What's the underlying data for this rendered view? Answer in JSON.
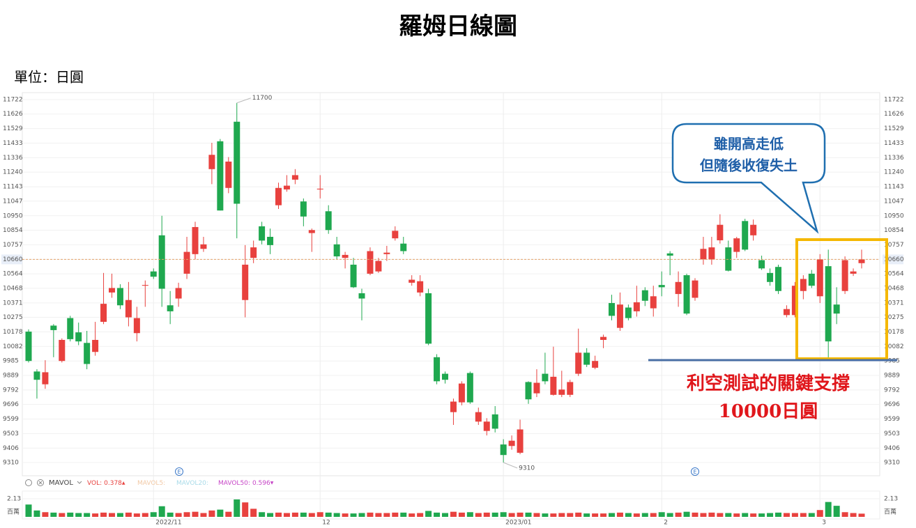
{
  "title": "羅姆日線圖",
  "unit": "單位：日圓",
  "chart_data": {
    "type": "candlestick",
    "categories": [
      null,
      null,
      null,
      null,
      null,
      null,
      null,
      null,
      null,
      null,
      null,
      null,
      null,
      null,
      null,
      "2022/11",
      null,
      null,
      null,
      null,
      null,
      null,
      null,
      null,
      null,
      null,
      null,
      null,
      null,
      null,
      null,
      null,
      null,
      null,
      null,
      "12",
      null,
      null,
      null,
      null,
      null,
      null,
      null,
      null,
      null,
      null,
      null,
      null,
      null,
      null,
      null,
      null,
      null,
      null,
      null,
      null,
      null,
      "2023/01",
      null,
      null,
      null,
      null,
      null,
      null,
      null,
      null,
      null,
      null,
      null,
      null,
      null,
      null,
      null,
      null,
      null,
      null,
      "2",
      null,
      null,
      null,
      null,
      null,
      null,
      null,
      null,
      null,
      null,
      null,
      null,
      null,
      null,
      null,
      null,
      null,
      null,
      "3",
      null,
      null,
      null,
      null,
      null
    ],
    "open": [
      10180,
      9915,
      9830,
      10220,
      9985,
      10270,
      10175,
      10105,
      10045,
      10245,
      10440,
      10470,
      10275,
      10170,
      10485,
      10580,
      10820,
      10355,
      10400,
      10565,
      10695,
      10730,
      11260,
      11445,
      11135,
      11575,
      10390,
      10670,
      10880,
      10810,
      11020,
      11125,
      11190,
      11045,
      10835,
      11125,
      10980,
      10760,
      10670,
      10625,
      10435,
      10565,
      10580,
      10695,
      10800,
      10765,
      10505,
      10440,
      10435,
      10010,
      9900,
      9645,
      9710,
      9905,
      9582,
      9520,
      9630,
      9430,
      9420,
      9375,
      9845,
      9770,
      9900,
      9760,
      9760,
      9760,
      9900,
      10040,
      9940,
      10125,
      10370,
      10205,
      10340,
      10315,
      10455,
      10335,
      10490,
      10700,
      10430,
      10555,
      10405,
      10660,
      10660,
      10787,
      10740,
      10710,
      10915,
      10820,
      10655,
      10570,
      10610,
      10290,
      10290,
      10450,
      10565,
      10415,
      10615,
      10360,
      10450,
      10565,
      10635
    ],
    "high": [
      10195,
      9930,
      9990,
      10230,
      10135,
      10285,
      10240,
      10185,
      10245,
      10570,
      10565,
      10495,
      10510,
      10345,
      10520,
      10600,
      10950,
      10450,
      10505,
      10810,
      10910,
      10810,
      11435,
      11460,
      11340,
      11700,
      10755,
      10785,
      10910,
      10865,
      11170,
      11220,
      11260,
      11065,
      10865,
      11220,
      11020,
      10810,
      10710,
      10670,
      10465,
      10740,
      10670,
      10750,
      10880,
      10810,
      10555,
      10555,
      10465,
      10030,
      9915,
      9735,
      9850,
      9915,
      9675,
      9605,
      9685,
      9465,
      9490,
      9595,
      9850,
      9930,
      10040,
      10080,
      9920,
      9860,
      10200,
      10070,
      10020,
      10160,
      10425,
      10440,
      10360,
      10485,
      10475,
      10485,
      10580,
      10715,
      10580,
      10565,
      10535,
      10810,
      10810,
      10960,
      10785,
      10810,
      10930,
      10925,
      10685,
      10600,
      10625,
      10355,
      10510,
      10555,
      10590,
      10695,
      10725,
      10475,
      10680,
      10600,
      10725
    ],
    "low": [
      9975,
      9735,
      9800,
      10010,
      9975,
      10115,
      10090,
      9930,
      10020,
      10230,
      10405,
      10330,
      10215,
      10115,
      10345,
      10530,
      10345,
      10230,
      10345,
      10530,
      10660,
      10710,
      11160,
      10985,
      11100,
      10800,
      10275,
      10635,
      10760,
      10695,
      10995,
      11110,
      11160,
      10880,
      10710,
      11065,
      10830,
      10660,
      10600,
      10470,
      10255,
      10555,
      10570,
      10650,
      10785,
      10695,
      10485,
      10415,
      10090,
      9830,
      9835,
      9560,
      9690,
      9700,
      9560,
      9490,
      9510,
      9310,
      9395,
      9365,
      9700,
      9745,
      9830,
      9755,
      9745,
      9745,
      9885,
      9945,
      9930,
      10070,
      10255,
      10185,
      10255,
      10280,
      10350,
      10280,
      10415,
      10555,
      10345,
      10290,
      10385,
      10625,
      10625,
      10765,
      10580,
      10670,
      10715,
      10785,
      10590,
      10485,
      10430,
      10275,
      10275,
      10395,
      10470,
      10370,
      10000,
      10230,
      10430,
      10550,
      10600
    ],
    "close": [
      9985,
      9860,
      9910,
      10190,
      10125,
      10130,
      10115,
      9965,
      10125,
      10365,
      10470,
      10355,
      10390,
      10270,
      10490,
      10545,
      10465,
      10315,
      10470,
      10710,
      10875,
      10760,
      11355,
      10985,
      11310,
      11030,
      10625,
      10740,
      10785,
      10755,
      11135,
      11150,
      11220,
      10945,
      10855,
      11130,
      10855,
      10680,
      10690,
      10475,
      10400,
      10715,
      10650,
      10705,
      10850,
      10715,
      10525,
      10515,
      10100,
      9850,
      9860,
      9715,
      9835,
      9710,
      9645,
      9582,
      9535,
      9360,
      9455,
      9530,
      9730,
      9840,
      9850,
      9880,
      9795,
      9845,
      10040,
      9960,
      9985,
      10145,
      10285,
      10360,
      10270,
      10375,
      10385,
      10415,
      10475,
      10685,
      10510,
      10300,
      10520,
      10730,
      10740,
      10890,
      10585,
      10800,
      10725,
      10890,
      10600,
      10510,
      10450,
      10330,
      10485,
      10530,
      10485,
      10660,
      10115,
      10300,
      10655,
      10580,
      10660
    ],
    "up_color": "#e8413e",
    "down_color": "#1fa84f",
    "ylim": [
      9236,
      11759
    ],
    "yticks": [
      9310,
      9406,
      9503,
      9599,
      9696,
      9792,
      9889,
      9985,
      10082,
      10178,
      10275,
      10371,
      10468,
      10564,
      10660,
      10757,
      10854,
      10950,
      11047,
      11143,
      11240,
      11336,
      11433,
      11529,
      11626,
      11722
    ],
    "grid": true,
    "last_price": 10660,
    "high_label": 11700,
    "low_label": 9310,
    "event_marker": "E",
    "volume": {
      "values": [
        1.45,
        0.75,
        0.55,
        0.5,
        0.45,
        0.5,
        0.45,
        0.45,
        0.4,
        0.5,
        0.45,
        0.45,
        0.5,
        0.4,
        0.45,
        0.55,
        1.25,
        0.5,
        0.45,
        0.55,
        0.6,
        0.45,
        0.75,
        0.85,
        0.6,
        2.05,
        1.7,
        0.95,
        0.55,
        0.45,
        0.5,
        0.45,
        0.5,
        0.5,
        0.45,
        0.55,
        0.5,
        0.45,
        0.4,
        0.4,
        0.45,
        0.5,
        0.45,
        0.45,
        0.5,
        0.5,
        0.4,
        0.45,
        0.7,
        0.5,
        0.45,
        0.6,
        0.5,
        0.55,
        0.45,
        0.5,
        0.5,
        0.55,
        0.45,
        0.5,
        0.5,
        0.45,
        0.4,
        0.4,
        0.45,
        0.45,
        0.5,
        0.4,
        0.4,
        0.4,
        0.45,
        0.5,
        0.45,
        0.4,
        0.45,
        0.45,
        0.55,
        0.45,
        0.5,
        0.6,
        0.5,
        0.45,
        0.5,
        0.45,
        0.45,
        0.4,
        0.45,
        0.4,
        0.4,
        0.45,
        0.5,
        0.45,
        0.45,
        0.45,
        0.45,
        0.8,
        1.75,
        1.3,
        0.55,
        0.45,
        0.378
      ],
      "ylim": [
        0,
        2.13
      ],
      "yticks": [
        2.13
      ],
      "unit_label": "百萬"
    },
    "indicator": {
      "name": "MAVOL",
      "legend": [
        {
          "name": "VOL:",
          "value": 0.378,
          "trend": "▲",
          "color": "#e8413e"
        },
        {
          "name": "MAVOL5:",
          "color": "#f2c9a6"
        },
        {
          "name": "MAVOL20:",
          "color": "#a9dbe9"
        },
        {
          "name": "MAVOL50:",
          "value": 0.596,
          "trend": "▼",
          "color": "#c746c7"
        }
      ]
    }
  },
  "annotations": {
    "callout": [
      "雖開高走低",
      "但隨後收復失土"
    ],
    "support": [
      "利空測試的關鍵支撐",
      "10000日圓"
    ]
  }
}
